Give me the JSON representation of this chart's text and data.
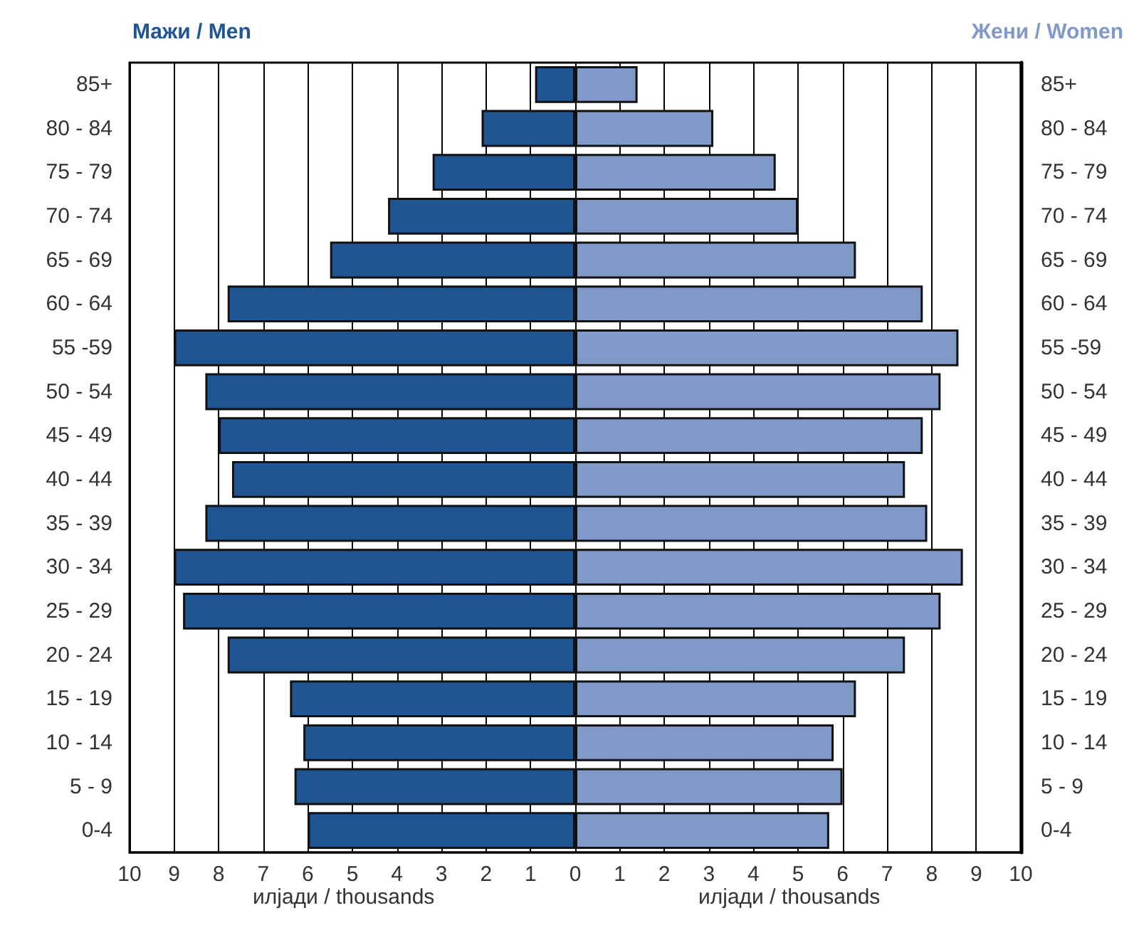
{
  "chart_data": {
    "type": "bar",
    "orientation": "horizontal",
    "xlabel": "илјади / thousands",
    "categories": [
      "85+",
      "80 - 84",
      "75 - 79",
      "70 - 74",
      "65 - 69",
      "60 - 64",
      "55 -59",
      "50 - 54",
      "45 - 49",
      "40 - 44",
      "35 - 39",
      "30 - 34",
      "25 - 29",
      "20 - 24",
      "15 - 19",
      "10 - 14",
      "5 - 9",
      "0-4"
    ],
    "series": [
      {
        "name": "Мажи / Men",
        "color": "#1f5592",
        "values": [
          -0.9,
          -2.1,
          -3.2,
          -4.2,
          -5.5,
          -7.8,
          -9.0,
          -8.3,
          -8.0,
          -7.7,
          -8.3,
          -9.0,
          -8.8,
          -7.8,
          -6.4,
          -6.1,
          -6.3,
          -6.0
        ]
      },
      {
        "name": "Жени / Women",
        "color": "#8099c8",
        "values": [
          1.4,
          3.1,
          4.5,
          5.0,
          6.3,
          7.8,
          8.6,
          8.2,
          7.8,
          7.4,
          7.9,
          8.7,
          8.2,
          7.4,
          6.3,
          5.8,
          6.0,
          5.7
        ]
      }
    ],
    "xlim": [
      -10,
      10
    ],
    "xticks": [
      {
        "value": -10,
        "label": "10"
      },
      {
        "value": -9,
        "label": "9"
      },
      {
        "value": -8,
        "label": "8"
      },
      {
        "value": -7,
        "label": "7"
      },
      {
        "value": -6,
        "label": "6"
      },
      {
        "value": -5,
        "label": "5"
      },
      {
        "value": -4,
        "label": "4"
      },
      {
        "value": -3,
        "label": "3"
      },
      {
        "value": -2,
        "label": "2"
      },
      {
        "value": -1,
        "label": "1"
      },
      0,
      1,
      2,
      3,
      4,
      5,
      6,
      7,
      8,
      9,
      10
    ],
    "grid": "x",
    "stacked": true
  }
}
